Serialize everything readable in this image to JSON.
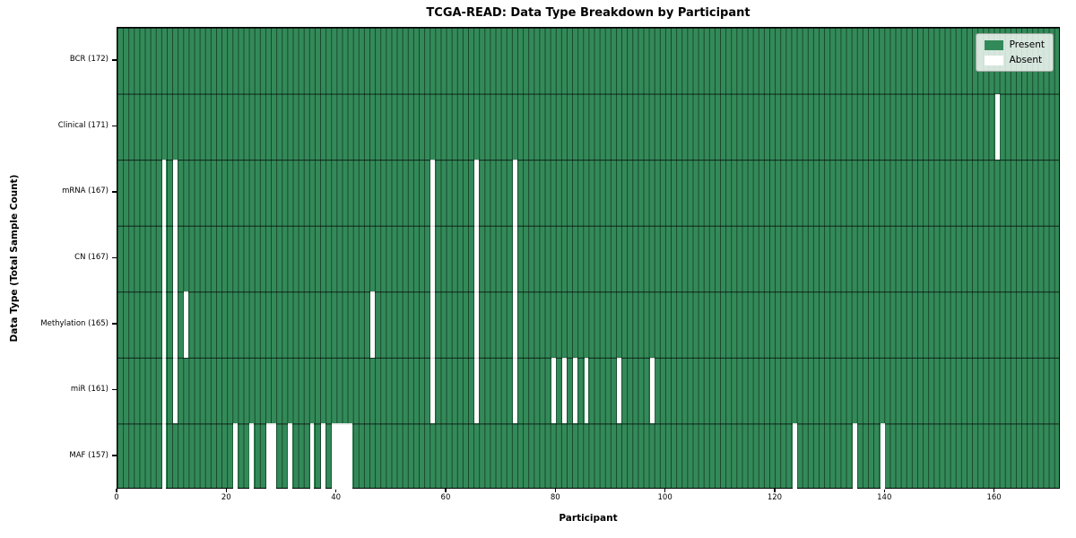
{
  "chart_data": {
    "type": "heatmap",
    "title": "TCGA-READ: Data Type Breakdown by Participant",
    "xlabel": "Participant",
    "ylabel": "Data Type (Total Sample Count)",
    "x_max": 172,
    "x_ticks": [
      0,
      20,
      40,
      60,
      80,
      100,
      120,
      140,
      160
    ],
    "grid": true,
    "legend_position": "upper right",
    "legend": [
      {
        "label": "Present",
        "color": "#338a59"
      },
      {
        "label": "Absent",
        "color": "#ffffff"
      }
    ],
    "colors": {
      "present": "#338a59",
      "absent": "#ffffff",
      "gridline": "rgba(0,0,0,0.5)"
    },
    "rows": [
      {
        "label": "BCR (172)",
        "data_type": "BCR",
        "total": 172,
        "absent_participants": []
      },
      {
        "label": "Clinical (171)",
        "data_type": "Clinical",
        "total": 171,
        "absent_participants": [
          160
        ]
      },
      {
        "label": "mRNA (167)",
        "data_type": "mRNA",
        "total": 167,
        "absent_participants": [
          8,
          10,
          57,
          65,
          72
        ]
      },
      {
        "label": "CN (167)",
        "data_type": "CN",
        "total": 167,
        "absent_participants": [
          8,
          10,
          57,
          65,
          72
        ]
      },
      {
        "label": "Methylation (165)",
        "data_type": "Methylation",
        "total": 165,
        "absent_participants": [
          8,
          10,
          12,
          46,
          57,
          65,
          72
        ]
      },
      {
        "label": "miR (161)",
        "data_type": "miR",
        "total": 161,
        "absent_participants": [
          8,
          10,
          57,
          65,
          72,
          79,
          81,
          83,
          85,
          91,
          97
        ]
      },
      {
        "label": "MAF (157)",
        "data_type": "MAF",
        "total": 157,
        "absent_participants": [
          8,
          21,
          24,
          27,
          28,
          31,
          35,
          37,
          39,
          40,
          41,
          42,
          123,
          134,
          139
        ]
      }
    ]
  }
}
